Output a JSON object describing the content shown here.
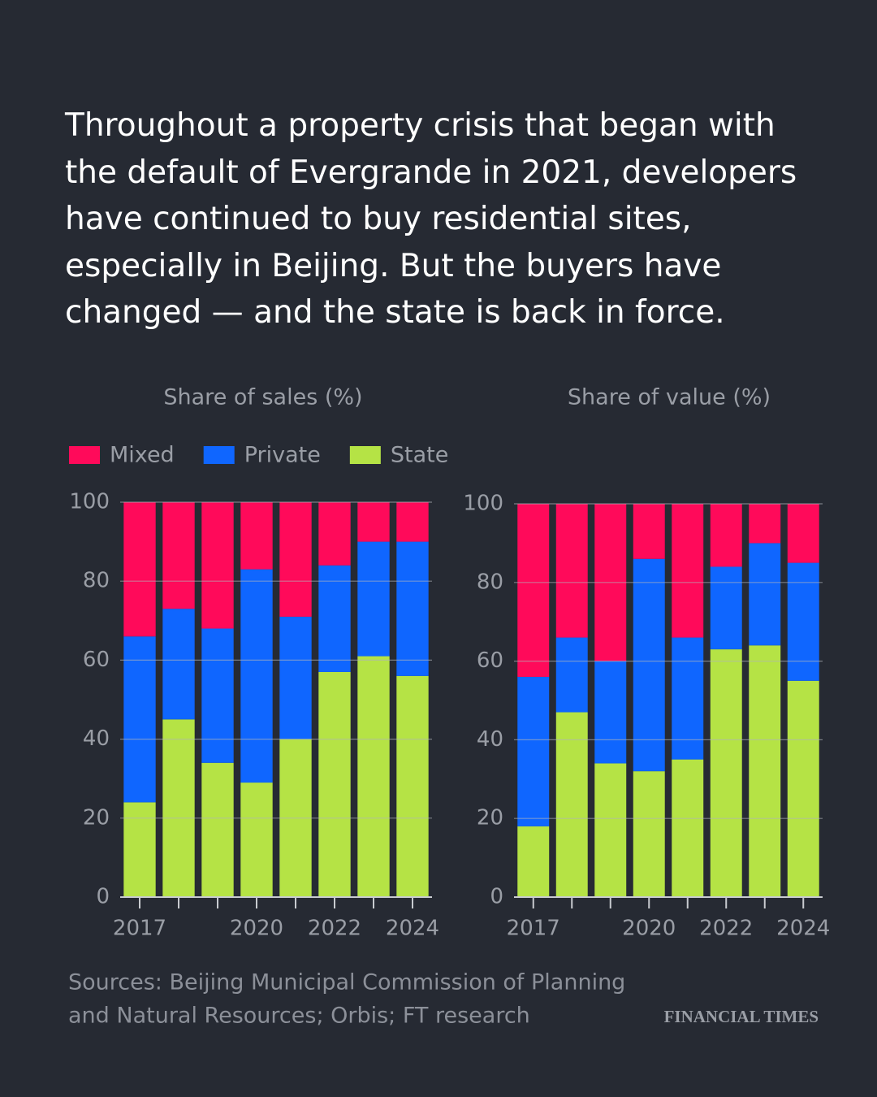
{
  "headline": "Throughout a property crisis that began with the default of Evergrande in 2021, developers have continued to buy residential sites, especially in Beijing. But the buyers have changed — and the state is back in force.",
  "chart_data": [
    {
      "type": "stacked_bar",
      "subtitle": "Share of sales (%)",
      "categories": [
        "2017",
        null,
        null,
        "2020",
        null,
        "2022",
        null,
        "2024"
      ],
      "series": [
        {
          "name": "Mixed",
          "color": "#ff0a5a",
          "values": [
            34,
            27,
            32,
            17,
            29,
            16,
            10,
            10
          ]
        },
        {
          "name": "Private",
          "color": "#0f66ff",
          "values": [
            42,
            28,
            34,
            54,
            31,
            27,
            29,
            34
          ]
        },
        {
          "name": "State",
          "color": "#b5e345",
          "values": [
            24,
            45,
            34,
            29,
            40,
            57,
            61,
            56
          ]
        }
      ],
      "ylim": [
        0,
        100
      ],
      "yticks": [
        0,
        20,
        40,
        60,
        80,
        100
      ],
      "grid": true,
      "legend": "top-left"
    },
    {
      "type": "stacked_bar",
      "subtitle": "Share of value (%)",
      "categories": [
        "2017",
        null,
        null,
        "2020",
        null,
        "2022",
        null,
        "2024"
      ],
      "series": [
        {
          "color": "#ff0a5a",
          "values": [
            44,
            34,
            40,
            14,
            34,
            16,
            10,
            15
          ]
        },
        {
          "color": "#0f66ff",
          "values": [
            38,
            19,
            26,
            54,
            31,
            21,
            26,
            30
          ]
        },
        {
          "color": "#b5e345",
          "values": [
            18,
            47,
            34,
            32,
            35,
            63,
            64,
            55
          ]
        }
      ],
      "ylim": [
        0,
        100
      ],
      "yticks": [
        0,
        20,
        40,
        60,
        80,
        100
      ],
      "grid": true
    }
  ],
  "source": [
    "Sources: Beijing Municipal Commission of Planning",
    "and Natural Resources; Orbis; FT research"
  ],
  "brand": "FINANCIAL TIMES"
}
